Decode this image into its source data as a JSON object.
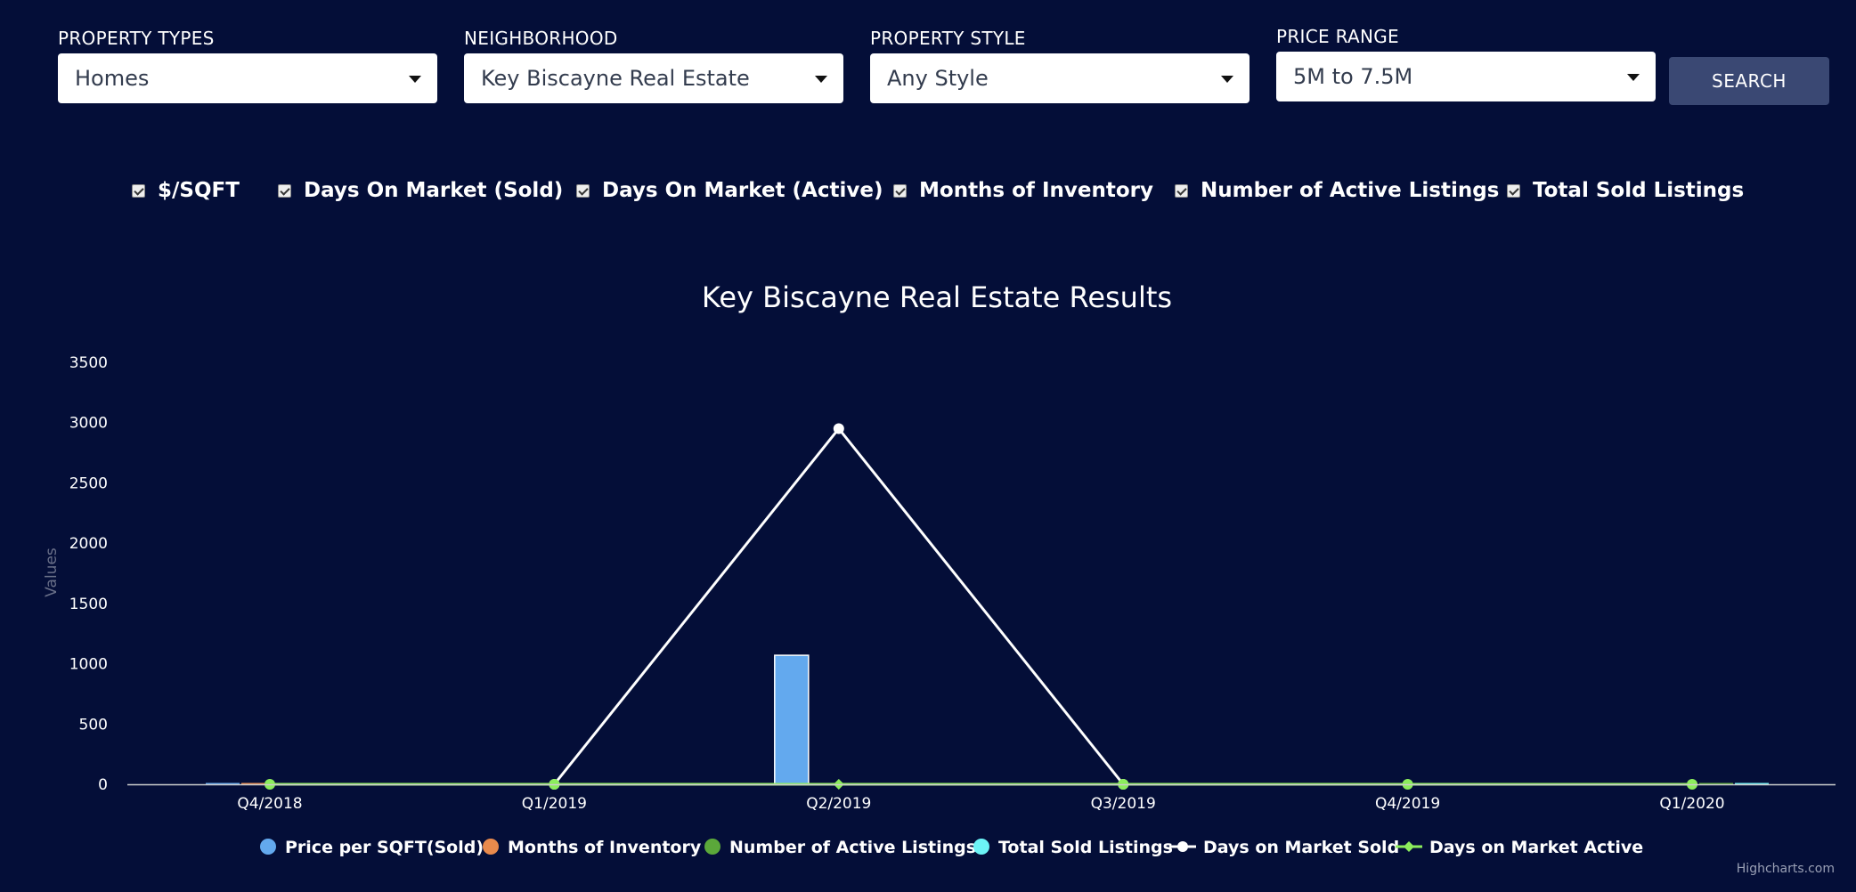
{
  "filters": {
    "property_types": {
      "label": "PROPERTY TYPES",
      "value": "Homes"
    },
    "neighborhood": {
      "label": "NEIGHBORHOOD",
      "value": "Key Biscayne Real Estate"
    },
    "property_style": {
      "label": "PROPERTY STYLE",
      "value": "Any Style"
    },
    "price_range": {
      "label": "PRICE RANGE",
      "value": "5M to 7.5M"
    },
    "search_label": "SEARCH"
  },
  "toggles": [
    {
      "label": "$/SQFT",
      "checked": true
    },
    {
      "label": "Days On Market (Sold)",
      "checked": true
    },
    {
      "label": "Days On Market (Active)",
      "checked": true
    },
    {
      "label": "Months of Inventory",
      "checked": true
    },
    {
      "label": "Number of Active Listings",
      "checked": true
    },
    {
      "label": "Total Sold Listings",
      "checked": true
    }
  ],
  "chart_data": {
    "type": "bar",
    "title": "Key Biscayne Real Estate Results",
    "ylabel": "Values",
    "xlabel": "",
    "ylim": [
      0,
      3500
    ],
    "yticks": [
      0,
      500,
      1000,
      1500,
      2000,
      2500,
      3000,
      3500
    ],
    "categories": [
      "Q4/2018",
      "Q1/2019",
      "Q2/2019",
      "Q3/2019",
      "Q4/2019",
      "Q1/2020"
    ],
    "grid": false,
    "legend_position": "bottom",
    "series": [
      {
        "name": "Price per SQFT(Sold)",
        "kind": "column",
        "color": "#63a9ee",
        "values": [
          0,
          0,
          1070,
          0,
          0,
          0
        ]
      },
      {
        "name": "Months of Inventory",
        "kind": "column",
        "color": "#e98a4c",
        "values": [
          0,
          0,
          0,
          0,
          0,
          0
        ]
      },
      {
        "name": "Number of Active Listings",
        "kind": "column",
        "color": "#5ba83a",
        "values": [
          0,
          0,
          0,
          0,
          0,
          0
        ]
      },
      {
        "name": "Total Sold Listings",
        "kind": "column",
        "color": "#6cf3f6",
        "values": [
          0,
          0,
          0,
          0,
          0,
          0
        ]
      },
      {
        "name": "Days on Market Sold",
        "kind": "line",
        "color": "#ffffff",
        "values": [
          null,
          0,
          2950,
          0,
          null,
          null
        ]
      },
      {
        "name": "Days on Market Active",
        "kind": "line",
        "color": "#8ced5c",
        "values": [
          0,
          0,
          0,
          0,
          0,
          0
        ]
      }
    ],
    "credits": "Highcharts.com"
  }
}
